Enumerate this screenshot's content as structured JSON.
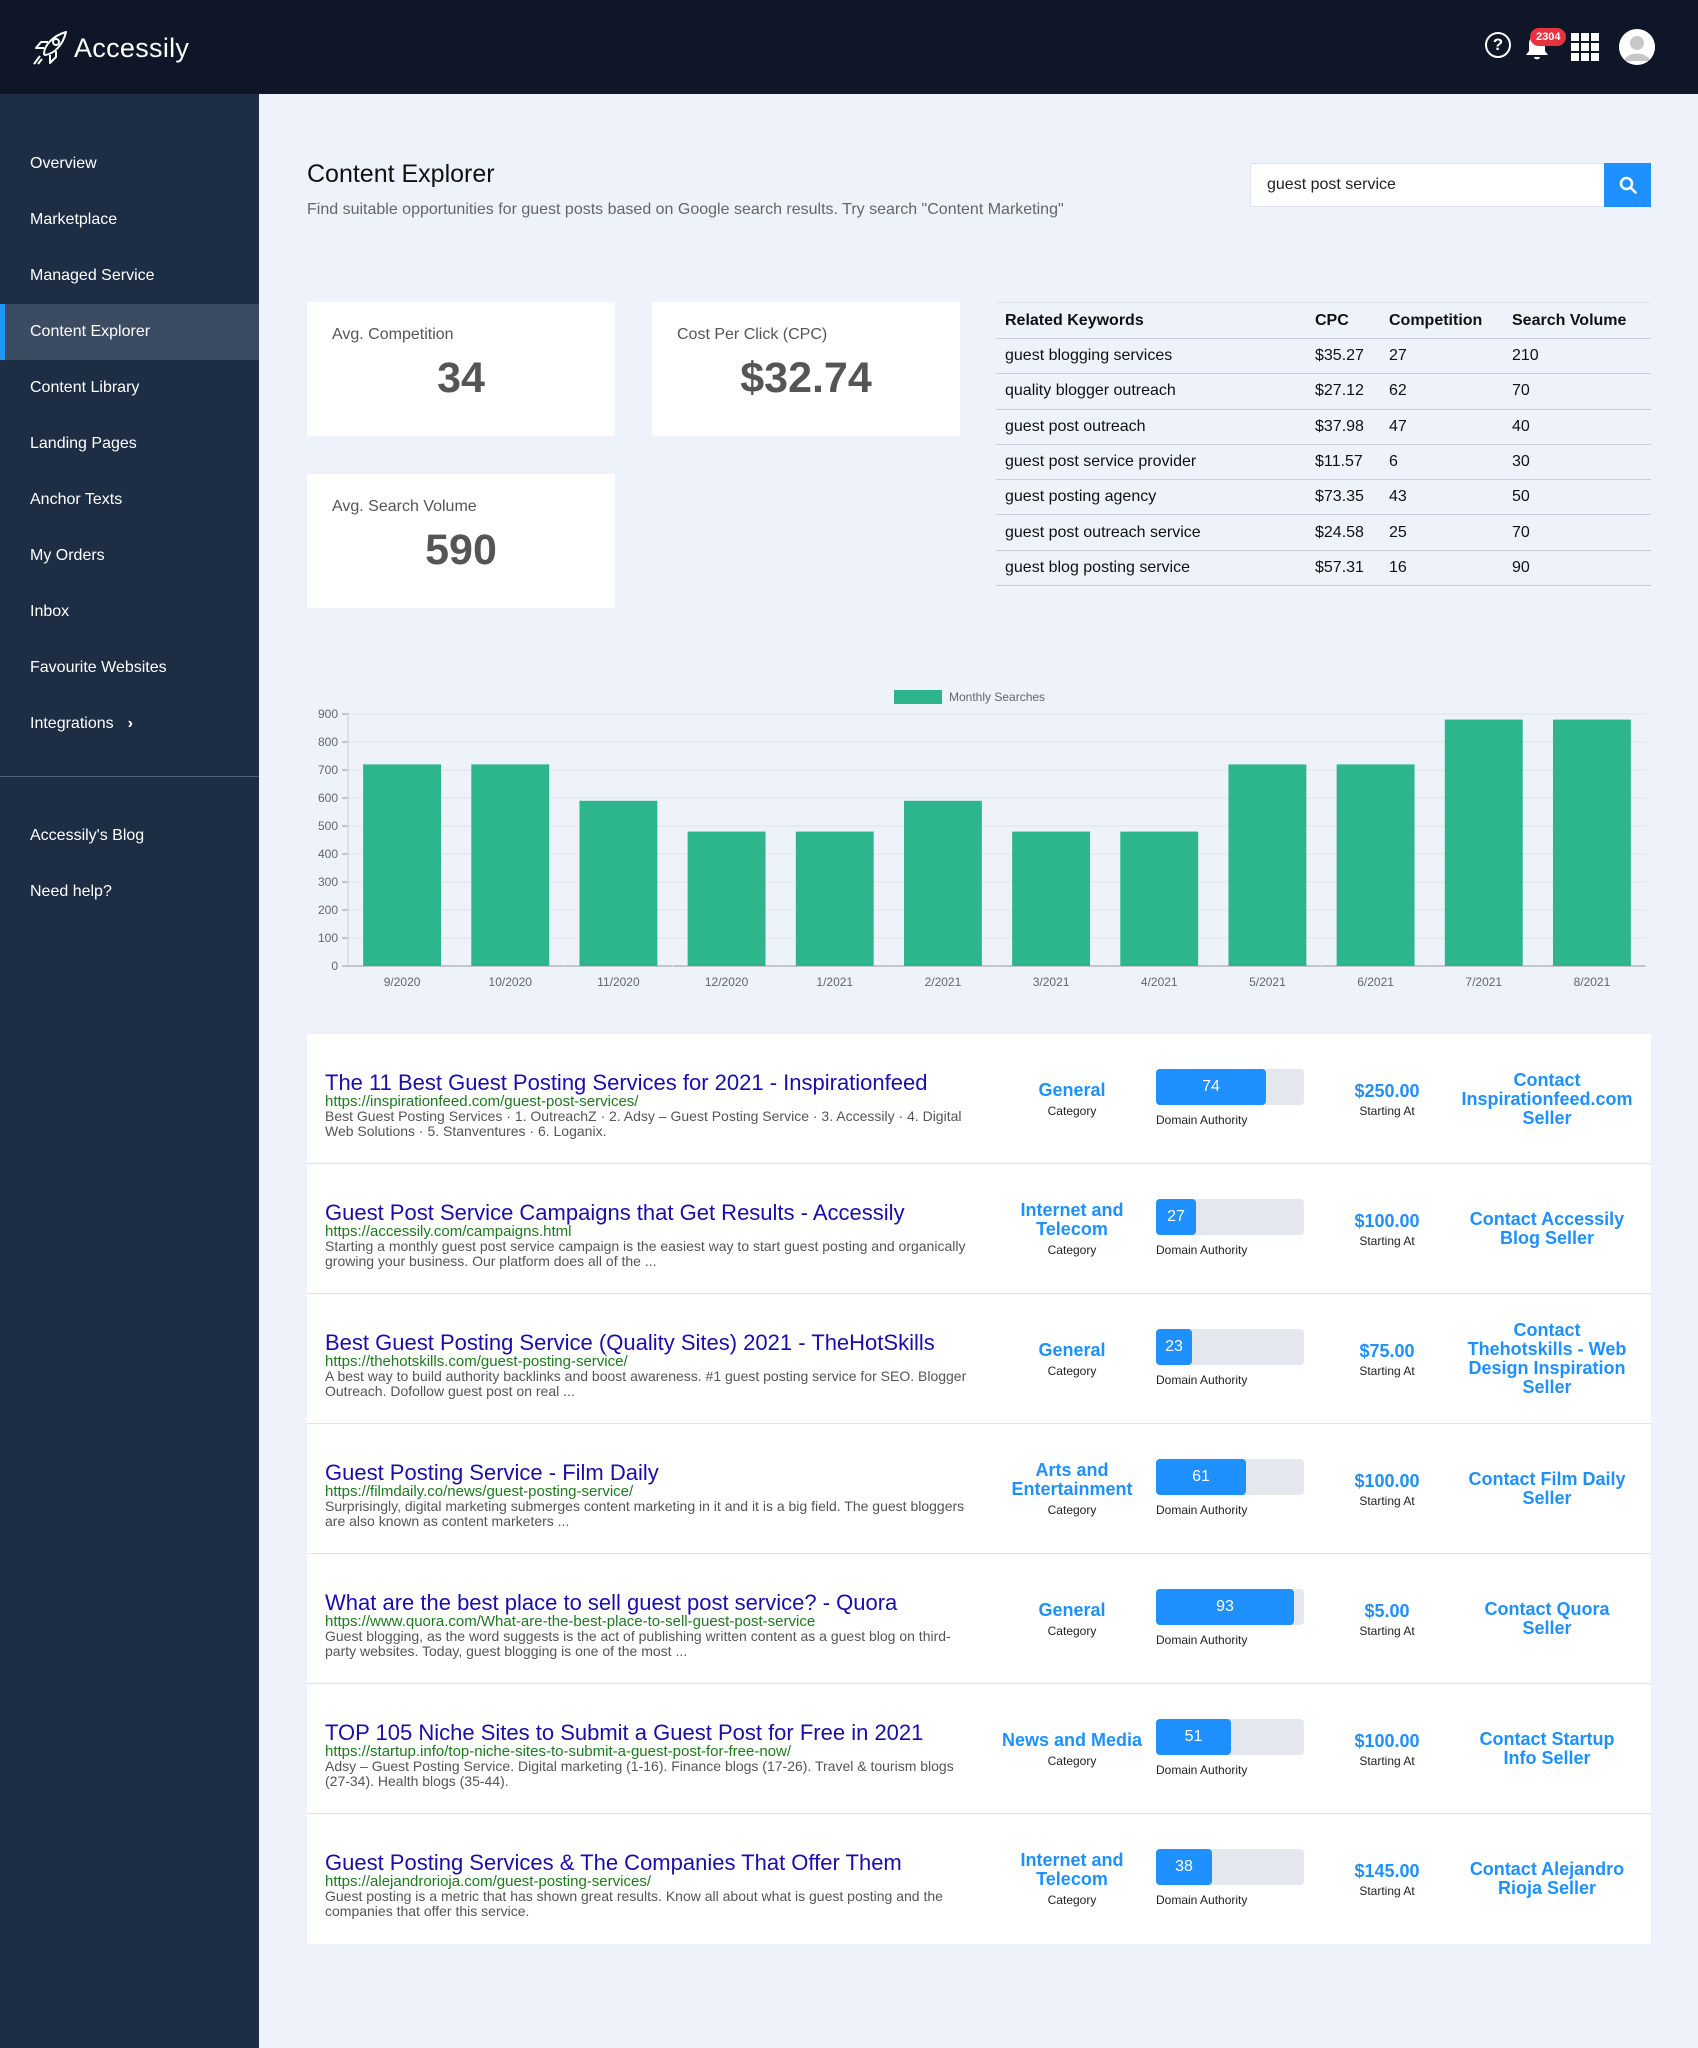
{
  "app": {
    "name": "Accessily"
  },
  "header": {
    "notification_count": "2304"
  },
  "sidebar": {
    "items": [
      {
        "label": "Overview"
      },
      {
        "label": "Marketplace"
      },
      {
        "label": "Managed Service"
      },
      {
        "label": "Content Explorer"
      },
      {
        "label": "Content Library"
      },
      {
        "label": "Landing Pages"
      },
      {
        "label": "Anchor Texts"
      },
      {
        "label": "My Orders"
      },
      {
        "label": "Inbox"
      },
      {
        "label": "Favourite Websites"
      },
      {
        "label": "Integrations"
      }
    ],
    "secondary": [
      {
        "label": "Accessily's Blog"
      },
      {
        "label": "Need help?"
      }
    ],
    "active": "Content Explorer"
  },
  "page": {
    "title": "Content Explorer",
    "subtitle": "Find suitable opportunities for guest posts based on Google search results. Try search \"Content Marketing\""
  },
  "search": {
    "value": "guest post service"
  },
  "stats": {
    "competition": {
      "label": "Avg. Competition",
      "value": "34"
    },
    "cpc": {
      "label": "Cost Per Click (CPC)",
      "value": "$32.74"
    },
    "volume": {
      "label": "Avg. Search Volume",
      "value": "590"
    }
  },
  "keywords": {
    "headers": [
      "Related Keywords",
      "CPC",
      "Competition",
      "Search Volume"
    ],
    "rows": [
      [
        "guest blogging services",
        "$35.27",
        "27",
        "210"
      ],
      [
        "quality blogger outreach",
        "$27.12",
        "62",
        "70"
      ],
      [
        "guest post outreach",
        "$37.98",
        "47",
        "40"
      ],
      [
        "guest post service provider",
        "$11.57",
        "6",
        "30"
      ],
      [
        "guest posting agency",
        "$73.35",
        "43",
        "50"
      ],
      [
        "guest post outreach service",
        "$24.58",
        "25",
        "70"
      ],
      [
        "guest blog posting service",
        "$57.31",
        "16",
        "90"
      ]
    ]
  },
  "chart_data": {
    "type": "bar",
    "title": "",
    "legend": [
      "Monthly Searches"
    ],
    "categories": [
      "9/2020",
      "10/2020",
      "11/2020",
      "12/2020",
      "1/2021",
      "2/2021",
      "3/2021",
      "4/2021",
      "5/2021",
      "6/2021",
      "7/2021",
      "8/2021"
    ],
    "series": [
      {
        "name": "Monthly Searches",
        "values": [
          720,
          720,
          590,
          480,
          480,
          590,
          480,
          480,
          720,
          720,
          880,
          880
        ]
      }
    ],
    "yticks": [
      0,
      100,
      200,
      300,
      400,
      500,
      600,
      700,
      800,
      900
    ],
    "ylim": [
      0,
      900
    ],
    "xlabel": "",
    "ylabel": "",
    "bar_color": "#2db58b"
  },
  "results": [
    {
      "title": "The 11 Best Guest Posting Services for 2021 - Inspirationfeed",
      "url": "https://inspirationfeed.com/guest-post-services/",
      "snippet": "Best Guest Posting Services · 1. OutreachZ · 2. Adsy – Guest Posting Service · 3. Accessily · 4. Digital Web Solutions · 5. Stanventures · 6. Loganix.",
      "category": "General",
      "category_label": "Category",
      "da": 74,
      "da_label": "Domain Authority",
      "price": "$250.00",
      "price_label": "Starting At",
      "contact": "Contact Inspirationfeed.com Seller"
    },
    {
      "title": "Guest Post Service Campaigns that Get Results - Accessily",
      "url": "https://accessily.com/campaigns.html",
      "snippet": "Starting a monthly guest post service campaign is the easiest way to start guest posting and organically growing your business. Our platform does all of the ...",
      "category": "Internet and Telecom",
      "category_label": "Category",
      "da": 27,
      "da_label": "Domain Authority",
      "price": "$100.00",
      "price_label": "Starting At",
      "contact": "Contact Accessily Blog Seller"
    },
    {
      "title": "Best Guest Posting Service (Quality Sites) 2021 - TheHotSkills",
      "url": "https://thehotskills.com/guest-posting-service/",
      "snippet": "A best way to build authority backlinks and boost awareness. #1 guest posting service for SEO. Blogger Outreach. Dofollow guest post on real ...",
      "category": "General",
      "category_label": "Category",
      "da": 23,
      "da_label": "Domain Authority",
      "price": "$75.00",
      "price_label": "Starting At",
      "contact": "Contact Thehotskills - Web Design Inspiration Seller"
    },
    {
      "title": "Guest Posting Service - Film Daily",
      "url": "https://filmdaily.co/news/guest-posting-service/",
      "snippet": "Surprisingly, digital marketing submerges content marketing in it and it is a big field. The guest bloggers are also known as content marketers ...",
      "category": "Arts and Entertainment",
      "category_label": "Category",
      "da": 61,
      "da_label": "Domain Authority",
      "price": "$100.00",
      "price_label": "Starting At",
      "contact": "Contact Film Daily Seller"
    },
    {
      "title": "What are the best place to sell guest post service? - Quora",
      "url": "https://www.quora.com/What-are-the-best-place-to-sell-guest-post-service",
      "snippet": "Guest blogging, as the word suggests is the act of publishing written content as a guest blog on third-party websites. Today, guest blogging is one of the most ...",
      "category": "General",
      "category_label": "Category",
      "da": 93,
      "da_label": "Domain Authority",
      "price": "$5.00",
      "price_label": "Starting At",
      "contact": "Contact Quora Seller"
    },
    {
      "title": "TOP 105 Niche Sites to Submit a Guest Post for Free in 2021",
      "url": "https://startup.info/top-niche-sites-to-submit-a-guest-post-for-free-now/",
      "snippet": "Adsy – Guest Posting Service. Digital marketing (1-16). Finance blogs (17-26). Travel & tourism blogs (27-34). Health blogs (35-44).",
      "category": "News and Media",
      "category_label": "Category",
      "da": 51,
      "da_label": "Domain Authority",
      "price": "$100.00",
      "price_label": "Starting At",
      "contact": "Contact Startup Info Seller"
    },
    {
      "title": "Guest Posting Services & The Companies That Offer Them",
      "url": "https://alejandrorioja.com/guest-posting-services/",
      "snippet": "Guest posting is a metric that has shown great results. Know all about what is guest posting and the companies that offer this service.",
      "category": "Internet and Telecom",
      "category_label": "Category",
      "da": 38,
      "da_label": "Domain Authority",
      "price": "$145.00",
      "price_label": "Starting At",
      "contact": "Contact Alejandro Rioja Seller"
    }
  ]
}
